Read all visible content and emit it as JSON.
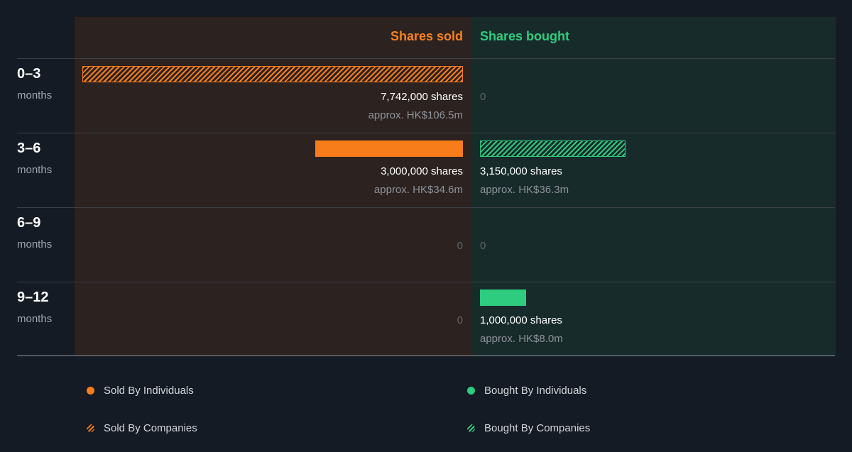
{
  "chart_data": {
    "type": "bar",
    "headers": {
      "sold": "Shares sold",
      "bought": "Shares bought"
    },
    "colors": {
      "sold": "#f77d1b",
      "bought": "#2dcc7e",
      "sold_header": "#f58220",
      "bought_header": "#2dcc7e"
    },
    "max_shares": 7742000,
    "periods": [
      {
        "label": "0–3",
        "unit": "months",
        "sold": {
          "type": "companies",
          "shares": 7742000,
          "shares_label": "7,742,000 shares",
          "approx_label": "approx. HK$106.5m"
        },
        "bought": {
          "type": "none",
          "shares": 0,
          "shares_label": "0",
          "approx_label": ""
        }
      },
      {
        "label": "3–6",
        "unit": "months",
        "sold": {
          "type": "individuals",
          "shares": 3000000,
          "shares_label": "3,000,000 shares",
          "approx_label": "approx. HK$34.6m"
        },
        "bought": {
          "type": "companies",
          "shares": 3150000,
          "shares_label": "3,150,000 shares",
          "approx_label": "approx. HK$36.3m"
        }
      },
      {
        "label": "6–9",
        "unit": "months",
        "sold": {
          "type": "none",
          "shares": 0,
          "shares_label": "0",
          "approx_label": ""
        },
        "bought": {
          "type": "none",
          "shares": 0,
          "shares_label": "0",
          "approx_label": ""
        }
      },
      {
        "label": "9–12",
        "unit": "months",
        "sold": {
          "type": "none",
          "shares": 0,
          "shares_label": "0",
          "approx_label": ""
        },
        "bought": {
          "type": "individuals",
          "shares": 1000000,
          "shares_label": "1,000,000 shares",
          "approx_label": "approx. HK$8.0m"
        }
      }
    ],
    "legend": [
      {
        "key": "sold-individuals",
        "label": "Sold By Individuals"
      },
      {
        "key": "bought-individuals",
        "label": "Bought By Individuals"
      },
      {
        "key": "sold-companies",
        "label": "Sold By Companies"
      },
      {
        "key": "bought-companies",
        "label": "Bought By Companies"
      }
    ]
  }
}
